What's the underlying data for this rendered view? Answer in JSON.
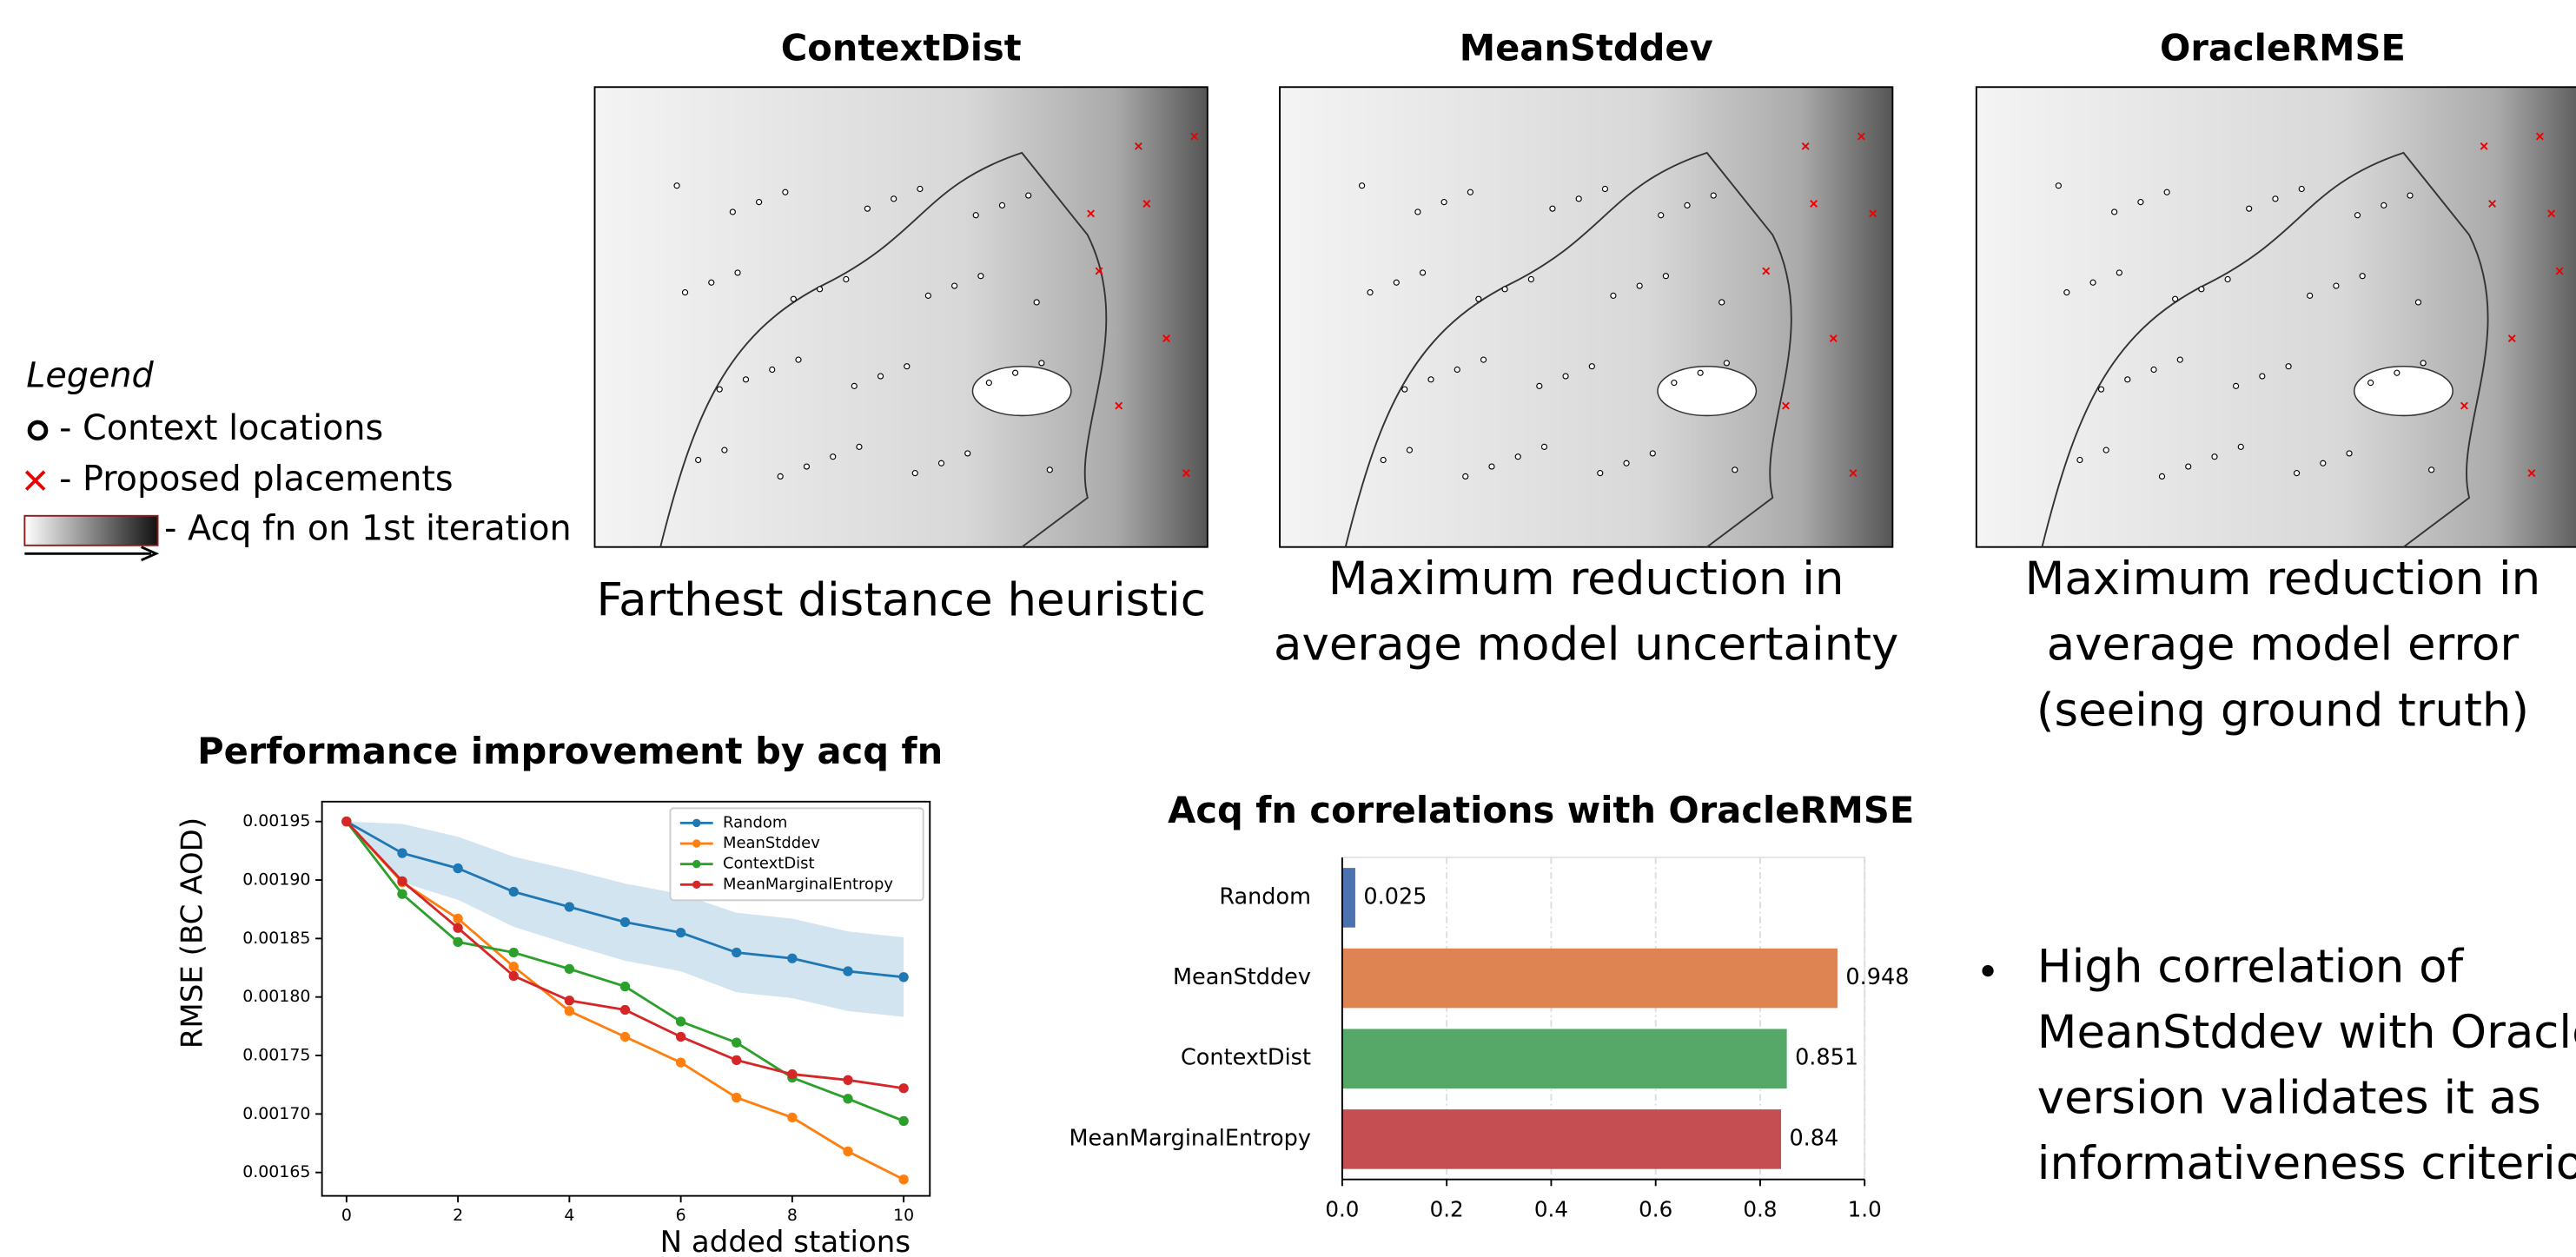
{
  "legend": {
    "title": "Legend",
    "items": [
      "- Context locations",
      "- Proposed placements",
      "- Acq fn on 1st iteration"
    ]
  },
  "maps": [
    {
      "title": "ContextDist",
      "caption": [
        "Farthest distance heuristic"
      ]
    },
    {
      "title": "MeanStddev",
      "caption": [
        "Maximum reduction in",
        "average model uncertainty"
      ]
    },
    {
      "title": "OracleRMSE",
      "caption": [
        "Maximum reduction in",
        "average model error",
        "(seeing ground truth)"
      ]
    }
  ],
  "bullet": [
    "High correlation of",
    "MeanStddev with Oracle",
    "version validates it as",
    "informativeness criterion"
  ],
  "chart_data": [
    {
      "type": "line",
      "title": "Performance improvement by acq fn",
      "x_label": "N added stations",
      "y_label": "RMSE (BC AOD)",
      "x": [
        0,
        1,
        2,
        3,
        4,
        5,
        6,
        7,
        8,
        9,
        10
      ],
      "xlim": [
        -0.44,
        10.47
      ],
      "xticks": [
        0,
        2,
        4,
        6,
        8,
        10
      ],
      "ylim": [
        0.00163,
        0.001967
      ],
      "yticks": [
        {
          "value": 0.00165,
          "label": "0.00165"
        },
        {
          "value": 0.0017,
          "label": "0.00170"
        },
        {
          "value": 0.00175,
          "label": "0.00175"
        },
        {
          "value": 0.0018,
          "label": "0.00180"
        },
        {
          "value": 0.00185,
          "label": "0.00185"
        },
        {
          "value": 0.0019,
          "label": "0.00190"
        },
        {
          "value": 0.00195,
          "label": "0.00195"
        }
      ],
      "legend": "upper right",
      "series": [
        {
          "name": "Random",
          "color": "#1f77b4",
          "values": [
            0.00195,
            0.001923,
            0.00191,
            0.00189,
            0.001877,
            0.001864,
            0.001855,
            0.001838,
            0.001833,
            0.001822,
            0.001817
          ],
          "error": [
            0,
            2.5e-05,
            2.7e-05,
            3e-05,
            3.2e-05,
            3.3e-05,
            3.3e-05,
            3.4e-05,
            3.4e-05,
            3.4e-05,
            3.4e-05
          ]
        },
        {
          "name": "MeanStddev",
          "color": "#ff7f0e",
          "values": [
            0.00195,
            0.001898,
            0.001867,
            0.001826,
            0.001788,
            0.001766,
            0.001744,
            0.001714,
            0.001697,
            0.001668,
            0.001644
          ]
        },
        {
          "name": "ContextDist",
          "color": "#2ca02c",
          "values": [
            0.00195,
            0.001888,
            0.001847,
            0.001838,
            0.001824,
            0.001809,
            0.001779,
            0.001761,
            0.001731,
            0.001713,
            0.001694
          ]
        },
        {
          "name": "MeanMarginalEntropy",
          "color": "#d62728",
          "values": [
            0.00195,
            0.001899,
            0.001859,
            0.001818,
            0.001797,
            0.001789,
            0.001766,
            0.001746,
            0.001734,
            0.001729,
            0.001722
          ]
        }
      ]
    },
    {
      "type": "barh",
      "title": "Acq fn correlations with OracleRMSE",
      "categories": [
        "Random",
        "MeanStddev",
        "ContextDist",
        "MeanMarginalEntropy"
      ],
      "values": [
        0.025,
        0.948,
        0.851,
        0.84
      ],
      "colors": [
        "#4c72b0",
        "#dd8452",
        "#55a868",
        "#c44e52"
      ],
      "xlim": [
        0,
        1.0
      ],
      "xticks": [
        {
          "value": 0,
          "label": "0.0"
        },
        0.2,
        0.4,
        0.6,
        0.8,
        {
          "value": 1,
          "label": "1.0"
        }
      ],
      "grid": true
    }
  ]
}
